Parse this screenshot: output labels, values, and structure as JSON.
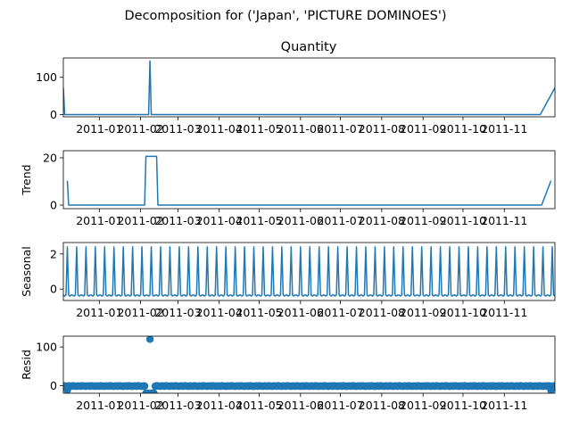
{
  "figure": {
    "suptitle": "Decomposition for ('Japan', 'PICTURE DOMINOES')"
  },
  "chart_data": [
    {
      "type": "line",
      "title": "Quantity",
      "ylabel": "",
      "ylim": [
        -6,
        152
      ],
      "yticks": [
        0,
        100
      ],
      "color": "#1f77b4",
      "series": [
        {
          "x": [
            "2010-12-05",
            "2010-12-06",
            "2011-02-07",
            "2011-02-08",
            "2011-02-09",
            "2011-11-28",
            "2011-12-09"
          ],
          "y": [
            72,
            0,
            0,
            144,
            0,
            0,
            72
          ]
        }
      ]
    },
    {
      "type": "line",
      "title": "",
      "ylabel": "Trend",
      "ylim": [
        -1.5,
        23
      ],
      "yticks": [
        0,
        20
      ],
      "color": "#1f77b4",
      "series": [
        {
          "x": [
            "2010-12-08",
            "2010-12-09",
            "2011-02-04",
            "2011-02-05",
            "2011-02-13",
            "2011-02-14",
            "2011-11-29",
            "2011-12-06"
          ],
          "y": [
            10.3,
            0,
            0,
            20.6,
            20.6,
            0,
            0,
            10.3
          ]
        }
      ]
    },
    {
      "type": "line",
      "title": "",
      "ylabel": "Seasonal",
      "ylim": [
        -0.65,
        2.65
      ],
      "yticks": [
        0,
        2
      ],
      "color": "#1f77b4",
      "period_days": 7,
      "pattern": [
        -0.34,
        -0.4,
        -0.34,
        2.4,
        -0.34,
        -0.4,
        -0.34
      ]
    },
    {
      "type": "scatter",
      "title": "",
      "ylabel": "Resid",
      "ylim": [
        -20,
        128
      ],
      "yticks": [
        0,
        100
      ],
      "color": "#1f77b4",
      "note_points": [
        {
          "x": "2010-12-08",
          "y": -12
        },
        {
          "x": "2011-02-05",
          "y": -20
        },
        {
          "x": "2011-02-06",
          "y": -20
        },
        {
          "x": "2011-02-07",
          "y": -20
        },
        {
          "x": "2011-02-08",
          "y": 120
        },
        {
          "x": "2011-02-09",
          "y": -20
        },
        {
          "x": "2011-02-10",
          "y": -20
        },
        {
          "x": "2011-02-11",
          "y": -20
        },
        {
          "x": "2011-12-06",
          "y": -12
        }
      ]
    }
  ],
  "x_axis": {
    "start": "2010-12-05",
    "end": "2011-12-09",
    "tick_dates": [
      "2011-01-01",
      "2011-02-01",
      "2011-03-01",
      "2011-04-01",
      "2011-05-01",
      "2011-06-01",
      "2011-07-01",
      "2011-08-01",
      "2011-09-01",
      "2011-10-01",
      "2011-11-01"
    ],
    "tick_labels": [
      "2011-01",
      "2011-02",
      "2011-03",
      "2011-04",
      "2011-05",
      "2011-06",
      "2011-07",
      "2011-08",
      "2011-09",
      "2011-10",
      "2011-11"
    ]
  }
}
